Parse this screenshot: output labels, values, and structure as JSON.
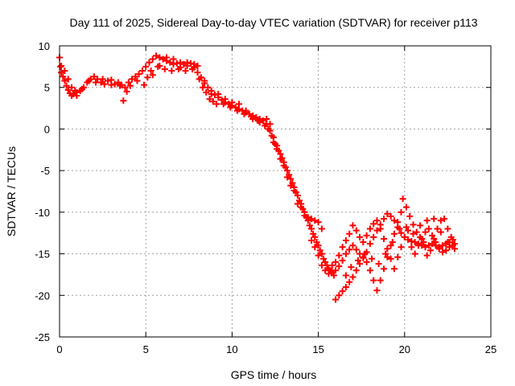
{
  "chart_data": {
    "type": "scatter",
    "title": "Day 111 of 2025, Sidereal Day-to-day VTEC variation (SDTVAR) for receiver p113",
    "xlabel": "GPS time / hours",
    "ylabel": "SDTVAR / TECUs",
    "xlim": [
      0,
      25
    ],
    "ylim": [
      -25,
      10
    ],
    "xticks": [
      "0",
      "5",
      "10",
      "15",
      "20",
      "25"
    ],
    "yticks": [
      "10",
      "5",
      "0",
      "-5",
      "-10",
      "-15",
      "-20",
      "-25"
    ],
    "grid": true,
    "marker": "plus",
    "color": "#ff0000",
    "series": [
      {
        "name": "SDTVAR",
        "points": [
          [
            0.0,
            8.6
          ],
          [
            0.05,
            7.5
          ],
          [
            0.1,
            6.8
          ],
          [
            0.2,
            6.3
          ],
          [
            0.3,
            5.8
          ],
          [
            0.4,
            5.2
          ],
          [
            0.5,
            4.7
          ],
          [
            0.6,
            4.3
          ],
          [
            0.7,
            4.0
          ],
          [
            0.8,
            4.2
          ],
          [
            0.9,
            4.6
          ],
          [
            1.0,
            4.4
          ],
          [
            1.2,
            4.6
          ],
          [
            1.4,
            5.0
          ],
          [
            1.6,
            5.6
          ],
          [
            1.8,
            6.0
          ],
          [
            2.0,
            6.3
          ],
          [
            2.2,
            6.0
          ],
          [
            2.4,
            5.6
          ],
          [
            2.6,
            5.4
          ],
          [
            2.8,
            5.8
          ],
          [
            3.0,
            5.3
          ],
          [
            3.2,
            5.4
          ],
          [
            3.4,
            5.6
          ],
          [
            3.6,
            5.3
          ],
          [
            3.8,
            5.0
          ],
          [
            4.0,
            5.6
          ],
          [
            4.2,
            6.0
          ],
          [
            4.4,
            6.3
          ],
          [
            4.6,
            6.6
          ],
          [
            4.8,
            7.0
          ],
          [
            5.0,
            7.5
          ],
          [
            5.2,
            8.0
          ],
          [
            5.4,
            8.4
          ],
          [
            5.6,
            8.8
          ],
          [
            5.8,
            8.6
          ],
          [
            6.0,
            8.4
          ],
          [
            6.2,
            8.2
          ],
          [
            6.4,
            8.0
          ],
          [
            6.6,
            7.8
          ],
          [
            6.8,
            7.9
          ],
          [
            7.0,
            8.0
          ],
          [
            7.2,
            7.8
          ],
          [
            7.4,
            7.6
          ],
          [
            7.6,
            7.9
          ],
          [
            7.8,
            7.4
          ],
          [
            8.0,
            6.8
          ],
          [
            8.2,
            6.2
          ],
          [
            8.4,
            5.5
          ],
          [
            8.6,
            5.0
          ],
          [
            8.8,
            4.6
          ],
          [
            9.0,
            4.1
          ],
          [
            9.2,
            3.8
          ],
          [
            9.4,
            3.5
          ],
          [
            9.6,
            3.2
          ],
          [
            9.8,
            3.0
          ],
          [
            10.0,
            2.8
          ],
          [
            10.2,
            2.6
          ],
          [
            10.4,
            2.4
          ],
          [
            10.6,
            2.2
          ],
          [
            10.8,
            2.0
          ],
          [
            11.0,
            1.8
          ],
          [
            11.2,
            1.6
          ],
          [
            11.4,
            1.4
          ],
          [
            11.6,
            1.2
          ],
          [
            11.8,
            1.0
          ],
          [
            12.0,
            0.6
          ],
          [
            12.2,
            -0.2
          ],
          [
            12.4,
            -1.0
          ],
          [
            12.6,
            -2.0
          ],
          [
            12.8,
            -3.0
          ],
          [
            13.0,
            -4.0
          ],
          [
            13.2,
            -5.0
          ],
          [
            13.4,
            -6.0
          ],
          [
            13.6,
            -7.0
          ],
          [
            13.8,
            -8.0
          ],
          [
            14.0,
            -9.0
          ],
          [
            14.2,
            -10.0
          ],
          [
            14.4,
            -11.0
          ],
          [
            14.6,
            -12.0
          ],
          [
            14.8,
            -13.0
          ],
          [
            15.0,
            -14.0
          ],
          [
            15.2,
            -15.0
          ],
          [
            15.4,
            -16.0
          ],
          [
            15.6,
            -16.8
          ],
          [
            15.8,
            -17.2
          ],
          [
            16.0,
            -17.0
          ],
          [
            16.2,
            -16.5
          ],
          [
            16.4,
            -15.8
          ],
          [
            16.6,
            -15.0
          ],
          [
            16.8,
            -14.5
          ],
          [
            17.0,
            -14.0
          ],
          [
            17.2,
            -14.5
          ],
          [
            17.4,
            -15.0
          ],
          [
            17.6,
            -15.5
          ],
          [
            17.8,
            -14.8
          ],
          [
            18.0,
            -13.8
          ],
          [
            18.2,
            -13.0
          ],
          [
            18.4,
            -12.2
          ],
          [
            18.6,
            -11.5
          ],
          [
            18.8,
            -10.8
          ],
          [
            19.0,
            -10.2
          ],
          [
            19.2,
            -10.5
          ],
          [
            19.4,
            -11.0
          ],
          [
            19.6,
            -11.8
          ],
          [
            19.8,
            -12.5
          ],
          [
            20.0,
            -13.0
          ],
          [
            20.2,
            -13.3
          ],
          [
            20.4,
            -13.5
          ],
          [
            20.6,
            -13.6
          ],
          [
            20.8,
            -13.8
          ],
          [
            21.0,
            -14.0
          ],
          [
            21.2,
            -14.2
          ],
          [
            21.4,
            -14.0
          ],
          [
            21.6,
            -13.8
          ],
          [
            21.8,
            -14.0
          ],
          [
            22.0,
            -14.2
          ],
          [
            22.2,
            -14.0
          ],
          [
            22.4,
            -13.8
          ],
          [
            22.6,
            -13.6
          ],
          [
            22.8,
            -13.3
          ],
          [
            0.1,
            7.6
          ],
          [
            0.3,
            7.0
          ],
          [
            0.5,
            6.0
          ],
          [
            0.7,
            5.0
          ],
          [
            1.0,
            4.0
          ],
          [
            1.3,
            4.8
          ],
          [
            1.7,
            5.8
          ],
          [
            2.1,
            5.6
          ],
          [
            2.5,
            6.0
          ],
          [
            3.0,
            5.9
          ],
          [
            3.5,
            5.2
          ],
          [
            3.7,
            3.4
          ],
          [
            3.9,
            4.5
          ],
          [
            4.1,
            5.2
          ],
          [
            4.5,
            5.8
          ],
          [
            4.9,
            5.3
          ],
          [
            5.1,
            6.2
          ],
          [
            5.3,
            7.0
          ],
          [
            5.7,
            7.5
          ],
          [
            6.1,
            7.2
          ],
          [
            6.5,
            7.0
          ],
          [
            6.9,
            7.2
          ],
          [
            7.3,
            7.0
          ],
          [
            7.7,
            7.2
          ],
          [
            8.1,
            6.0
          ],
          [
            8.3,
            5.0
          ],
          [
            8.5,
            4.4
          ],
          [
            8.7,
            3.6
          ],
          [
            8.9,
            3.3
          ],
          [
            9.1,
            3.0
          ],
          [
            9.5,
            3.0
          ],
          [
            9.9,
            2.6
          ],
          [
            10.3,
            2.2
          ],
          [
            10.7,
            1.8
          ],
          [
            11.1,
            1.5
          ],
          [
            11.5,
            1.0
          ],
          [
            11.9,
            0.4
          ],
          [
            12.1,
            0.0
          ],
          [
            12.3,
            -0.8
          ],
          [
            12.5,
            -1.8
          ],
          [
            12.7,
            -2.6
          ],
          [
            12.9,
            -3.5
          ],
          [
            13.1,
            -4.6
          ],
          [
            13.3,
            -5.5
          ],
          [
            13.5,
            -6.5
          ],
          [
            13.7,
            -7.6
          ],
          [
            13.9,
            -8.6
          ],
          [
            14.1,
            -9.6
          ],
          [
            14.3,
            -10.6
          ],
          [
            14.5,
            -11.6
          ],
          [
            14.7,
            -12.6
          ],
          [
            14.9,
            -13.6
          ],
          [
            15.1,
            -14.6
          ],
          [
            15.3,
            -15.6
          ],
          [
            15.5,
            -16.4
          ],
          [
            15.7,
            -17.0
          ],
          [
            15.9,
            -17.6
          ],
          [
            16.0,
            -20.5
          ],
          [
            16.2,
            -20.0
          ],
          [
            16.4,
            -19.5
          ],
          [
            16.6,
            -19.0
          ],
          [
            16.8,
            -18.4
          ],
          [
            17.0,
            -17.8
          ],
          [
            17.2,
            -17.0
          ],
          [
            17.4,
            -16.2
          ],
          [
            17.6,
            -15.4
          ],
          [
            17.8,
            -16.0
          ],
          [
            18.0,
            -17.0
          ],
          [
            18.2,
            -18.2
          ],
          [
            18.4,
            -19.4
          ],
          [
            18.6,
            -18.2
          ],
          [
            18.8,
            -16.8
          ],
          [
            19.0,
            -15.4
          ],
          [
            19.2,
            -14.0
          ],
          [
            19.4,
            -12.6
          ],
          [
            19.6,
            -11.2
          ],
          [
            19.8,
            -10.0
          ],
          [
            19.9,
            -8.4
          ],
          [
            20.1,
            -9.4
          ],
          [
            20.3,
            -10.5
          ],
          [
            20.5,
            -11.5
          ],
          [
            20.7,
            -12.4
          ],
          [
            20.9,
            -13.0
          ],
          [
            21.1,
            -13.6
          ],
          [
            21.3,
            -15.2
          ],
          [
            21.5,
            -14.6
          ],
          [
            21.7,
            -13.2
          ],
          [
            21.9,
            -12.0
          ],
          [
            22.1,
            -11.0
          ],
          [
            22.3,
            -10.8
          ],
          [
            22.5,
            -12.0
          ],
          [
            22.7,
            -13.0
          ],
          [
            22.9,
            -13.8
          ],
          [
            5.4,
            6.5
          ],
          [
            5.8,
            7.6
          ],
          [
            6.2,
            8.6
          ],
          [
            6.6,
            8.4
          ],
          [
            7.0,
            7.4
          ],
          [
            7.4,
            8.0
          ],
          [
            7.8,
            7.8
          ],
          [
            8.0,
            7.6
          ],
          [
            8.4,
            5.8
          ],
          [
            8.8,
            4.2
          ],
          [
            9.2,
            4.2
          ],
          [
            9.6,
            3.6
          ],
          [
            10.0,
            3.2
          ],
          [
            10.4,
            3.0
          ],
          [
            10.8,
            2.2
          ],
          [
            11.2,
            1.2
          ],
          [
            11.6,
            0.8
          ],
          [
            12.0,
            1.2
          ],
          [
            12.2,
            0.6
          ],
          [
            12.4,
            -1.6
          ],
          [
            12.6,
            -2.4
          ],
          [
            12.8,
            -3.6
          ],
          [
            13.0,
            -4.4
          ],
          [
            13.2,
            -5.8
          ],
          [
            13.4,
            -6.8
          ],
          [
            13.6,
            -7.4
          ],
          [
            13.8,
            -9.0
          ],
          [
            14.0,
            -9.4
          ],
          [
            14.2,
            -10.4
          ],
          [
            14.4,
            -10.6
          ],
          [
            14.6,
            -10.8
          ],
          [
            14.8,
            -11.0
          ],
          [
            15.0,
            -11.2
          ],
          [
            15.2,
            -12.0
          ],
          [
            14.6,
            -13.4
          ],
          [
            14.8,
            -14.2
          ],
          [
            15.0,
            -15.2
          ],
          [
            15.2,
            -16.4
          ],
          [
            15.4,
            -17.0
          ],
          [
            15.6,
            -17.4
          ],
          [
            15.8,
            -16.4
          ],
          [
            16.0,
            -16.0
          ],
          [
            16.2,
            -15.2
          ],
          [
            16.4,
            -14.2
          ],
          [
            16.6,
            -13.4
          ],
          [
            16.8,
            -12.6
          ],
          [
            17.0,
            -11.6
          ],
          [
            17.2,
            -12.2
          ],
          [
            17.4,
            -13.0
          ],
          [
            17.6,
            -13.6
          ],
          [
            17.8,
            -12.8
          ],
          [
            18.0,
            -12.0
          ],
          [
            18.2,
            -11.4
          ],
          [
            18.4,
            -11.0
          ],
          [
            18.6,
            -12.0
          ],
          [
            18.8,
            -13.2
          ],
          [
            19.0,
            -14.4
          ],
          [
            19.2,
            -15.6
          ],
          [
            19.4,
            -16.8
          ],
          [
            19.6,
            -15.4
          ],
          [
            19.8,
            -14.2
          ],
          [
            20.0,
            -13.0
          ],
          [
            20.2,
            -12.2
          ],
          [
            20.4,
            -14.2
          ],
          [
            20.6,
            -15.0
          ],
          [
            20.8,
            -14.0
          ],
          [
            21.0,
            -13.2
          ],
          [
            21.2,
            -12.4
          ],
          [
            21.4,
            -12.0
          ],
          [
            21.6,
            -12.8
          ],
          [
            21.8,
            -13.6
          ],
          [
            22.0,
            -14.4
          ],
          [
            22.2,
            -14.8
          ],
          [
            22.4,
            -14.6
          ],
          [
            22.6,
            -14.2
          ],
          [
            22.8,
            -14.0
          ],
          [
            16.6,
            -17.6
          ],
          [
            16.9,
            -16.6
          ],
          [
            17.3,
            -15.8
          ],
          [
            17.7,
            -15.0
          ],
          [
            18.1,
            -15.6
          ],
          [
            18.5,
            -16.2
          ],
          [
            18.9,
            -15.0
          ],
          [
            19.3,
            -13.6
          ],
          [
            19.7,
            -12.0
          ],
          [
            20.1,
            -11.8
          ],
          [
            20.5,
            -12.6
          ],
          [
            20.9,
            -11.6
          ],
          [
            21.3,
            -11.0
          ],
          [
            21.7,
            -10.8
          ],
          [
            22.1,
            -12.4
          ],
          [
            22.5,
            -13.6
          ],
          [
            22.9,
            -14.4
          ]
        ]
      }
    ]
  }
}
